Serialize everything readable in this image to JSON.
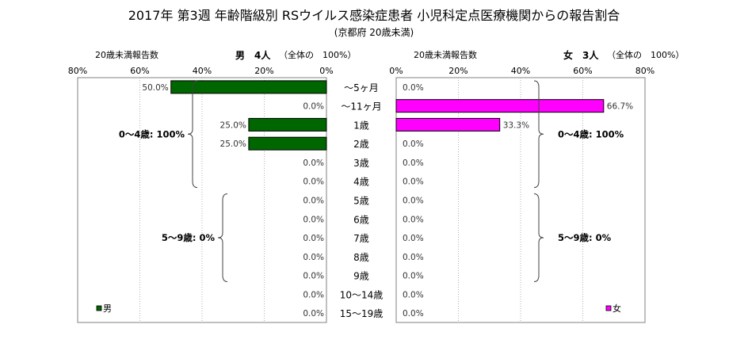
{
  "title": "2017年 第3週 年齢階級別 RSウイルス感染症患者 小児科定点医療機関からの報告割合",
  "subtitle": "(京都府 20歳未満)",
  "chart_data": {
    "type": "bar",
    "categories": [
      "～5ヶ月",
      "～11ヶ月",
      "1歳",
      "2歳",
      "3歳",
      "4歳",
      "5歳",
      "6歳",
      "7歳",
      "8歳",
      "9歳",
      "10～14歳",
      "15～19歳"
    ],
    "panels": [
      {
        "key": "male",
        "header_left": "20歳未満報告数",
        "header_bold": "男　4人",
        "header_right": "（全体の　100%）",
        "series": [
          {
            "name": "男",
            "values": [
              50.0,
              0.0,
              25.0,
              25.0,
              0.0,
              0.0,
              0.0,
              0.0,
              0.0,
              0.0,
              0.0,
              0.0,
              0.0
            ]
          }
        ],
        "color": "#006600",
        "direction": "left",
        "xlim": [
          0,
          80
        ],
        "xticks": [
          "80%",
          "60%",
          "40%",
          "20%",
          "0%"
        ],
        "groups": [
          {
            "label": "0～4歳: 100%",
            "from": 0,
            "to": 5
          },
          {
            "label": "5～9歳: 0%",
            "from": 6,
            "to": 10
          }
        ]
      },
      {
        "key": "female",
        "header_left": "20歳未満報告数",
        "header_bold": "女　3人",
        "header_right": "（全体の　100%）",
        "series": [
          {
            "name": "女",
            "values": [
              0.0,
              66.7,
              33.3,
              0.0,
              0.0,
              0.0,
              0.0,
              0.0,
              0.0,
              0.0,
              0.0,
              0.0,
              0.0
            ]
          }
        ],
        "color": "#ff00ff",
        "direction": "right",
        "xlim": [
          0,
          80
        ],
        "xticks": [
          "0%",
          "20%",
          "40%",
          "60%",
          "80%"
        ],
        "groups": [
          {
            "label": "0～4歳: 100%",
            "from": 0,
            "to": 5
          },
          {
            "label": "5～9歳: 0%",
            "from": 6,
            "to": 10
          }
        ]
      }
    ],
    "value_format": "{v}%",
    "grid": true,
    "legend": "bottom"
  }
}
